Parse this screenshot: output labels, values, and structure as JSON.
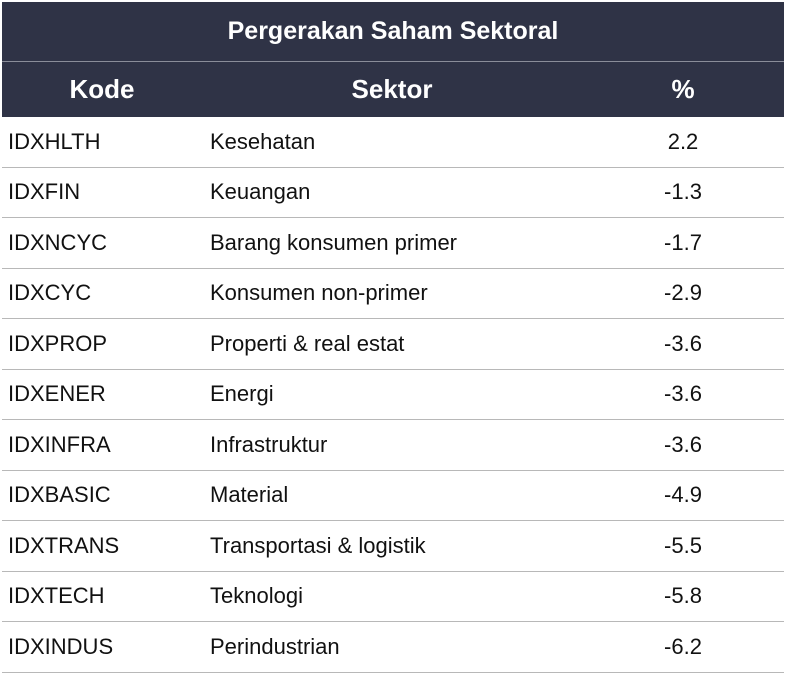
{
  "title": "Pergerakan Saham Sektoral",
  "headers": {
    "code": "Kode",
    "sector": "Sektor",
    "pct": "%"
  },
  "rows": [
    {
      "code": "IDXHLTH",
      "sector": "Kesehatan",
      "pct": "2.2"
    },
    {
      "code": "IDXFIN",
      "sector": "Keuangan",
      "pct": "-1.3"
    },
    {
      "code": "IDXNCYC",
      "sector": "Barang konsumen primer",
      "pct": "-1.7"
    },
    {
      "code": "IDXCYC",
      "sector": "Konsumen non-primer",
      "pct": "-2.9"
    },
    {
      "code": "IDXPROP",
      "sector": "Properti & real estat",
      "pct": "-3.6"
    },
    {
      "code": "IDXENER",
      "sector": "Energi",
      "pct": "-3.6"
    },
    {
      "code": "IDXINFRA",
      "sector": "Infrastruktur",
      "pct": "-3.6"
    },
    {
      "code": "IDXBASIC",
      "sector": "Material",
      "pct": "-4.9"
    },
    {
      "code": "IDXTRANS",
      "sector": "Transportasi & logistik",
      "pct": "-5.5"
    },
    {
      "code": "IDXTECH",
      "sector": "Teknologi",
      "pct": "-5.8"
    },
    {
      "code": "IDXINDUS",
      "sector": "Perindustrian",
      "pct": "-6.2"
    }
  ],
  "colors": {
    "header_bg": "#2f3346",
    "header_text": "#ffffff",
    "row_divider": "#b8b8b8"
  }
}
